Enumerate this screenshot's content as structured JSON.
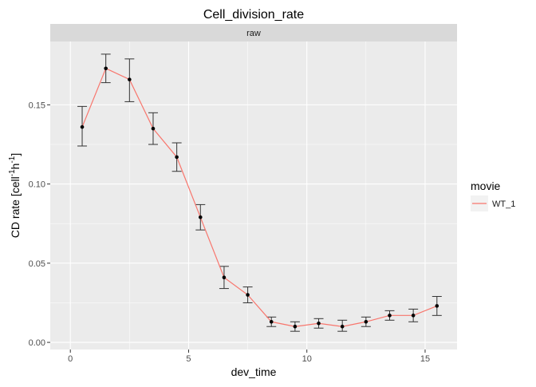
{
  "chart_data": {
    "type": "line",
    "title": "Cell_division_rate",
    "facet_label": "raw",
    "xlabel": "dev_time",
    "ylabel_main": "CD rate [cell",
    "ylabel_sup1": "-1",
    "ylabel_mid": "h",
    "ylabel_sup2": "-1",
    "ylabel_end": "]",
    "xlim": [
      -0.85,
      16.35
    ],
    "ylim": [
      -0.0045,
      0.19
    ],
    "x_ticks": [
      {
        "value": 0,
        "label": "0"
      },
      {
        "value": 5,
        "label": "5"
      },
      {
        "value": 10,
        "label": "10"
      },
      {
        "value": 15,
        "label": "15"
      }
    ],
    "y_ticks": [
      {
        "value": 0.0,
        "label": "0.00"
      },
      {
        "value": 0.05,
        "label": "0.05"
      },
      {
        "value": 0.1,
        "label": "0.10"
      },
      {
        "value": 0.15,
        "label": "0.15"
      }
    ],
    "legend": {
      "title": "movie",
      "placement": "right",
      "entries": [
        {
          "name": "WT_1",
          "color": "#F8766D"
        }
      ]
    },
    "series": [
      {
        "name": "WT_1",
        "color": "#F8766D",
        "x": [
          0.5,
          1.5,
          2.5,
          3.5,
          4.5,
          5.5,
          6.5,
          7.5,
          8.5,
          9.5,
          10.5,
          11.5,
          12.5,
          13.5,
          14.5,
          15.5
        ],
        "y": [
          0.136,
          0.173,
          0.166,
          0.135,
          0.117,
          0.079,
          0.041,
          0.03,
          0.013,
          0.01,
          0.012,
          0.01,
          0.013,
          0.017,
          0.017,
          0.023
        ],
        "ymin": [
          0.124,
          0.164,
          0.152,
          0.125,
          0.108,
          0.071,
          0.034,
          0.025,
          0.01,
          0.007,
          0.009,
          0.007,
          0.01,
          0.014,
          0.013,
          0.017
        ],
        "ymax": [
          0.149,
          0.182,
          0.179,
          0.145,
          0.126,
          0.087,
          0.048,
          0.035,
          0.016,
          0.013,
          0.015,
          0.014,
          0.016,
          0.02,
          0.021,
          0.029
        ]
      }
    ],
    "grid": true,
    "colors": {
      "panel_bg": "#EBEBEB",
      "grid": "#FFFFFF",
      "strip_bg": "#D9D9D9",
      "point": "#000000",
      "errorbar": "#333333"
    }
  }
}
